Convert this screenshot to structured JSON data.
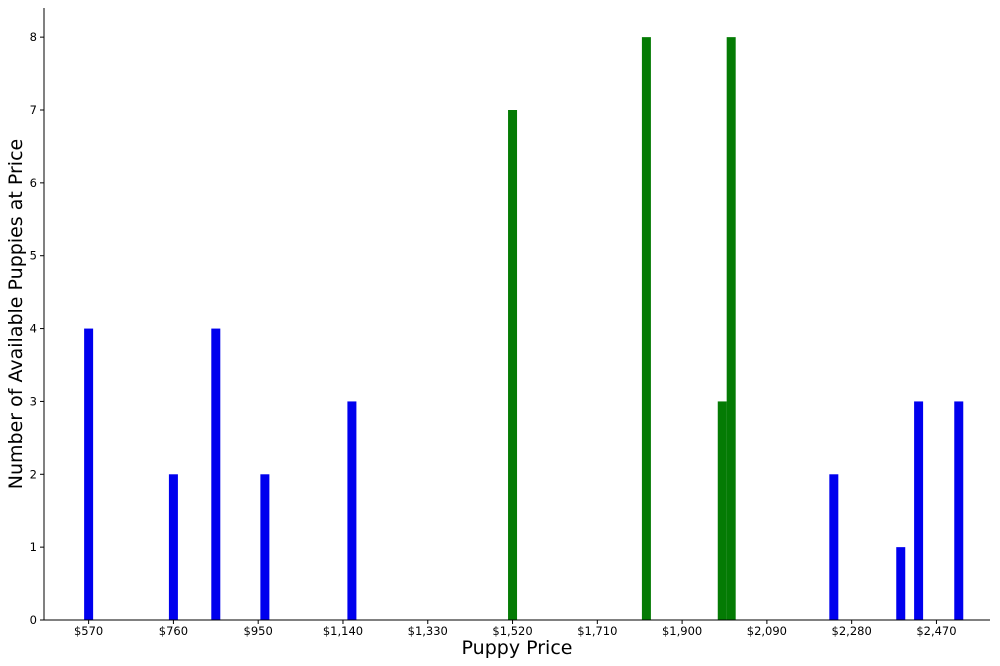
{
  "chart_data": {
    "type": "bar",
    "xlabel": "Puppy Price",
    "ylabel": "Number of Available Puppies at Price",
    "xlim": [
      470,
      2590
    ],
    "ylim": [
      0,
      8.4
    ],
    "x_ticks": [
      570,
      760,
      950,
      1140,
      1330,
      1520,
      1710,
      1900,
      2090,
      2280,
      2470
    ],
    "x_tick_labels": [
      "$570",
      "$760",
      "$950",
      "$1,140",
      "$1,330",
      "$1,520",
      "$1,710",
      "$1,900",
      "$2,090",
      "$2,280",
      "$2,470"
    ],
    "y_ticks": [
      0,
      1,
      2,
      3,
      4,
      5,
      6,
      7,
      8
    ],
    "y_tick_labels": [
      "0",
      "1",
      "2",
      "3",
      "4",
      "5",
      "6",
      "7",
      "8"
    ],
    "grid": false,
    "colors": {
      "blue": "#0000ee",
      "green": "#047b04"
    },
    "bars": [
      {
        "x": 570,
        "y": 4,
        "color": "blue"
      },
      {
        "x": 760,
        "y": 2,
        "color": "blue"
      },
      {
        "x": 855,
        "y": 4,
        "color": "blue"
      },
      {
        "x": 965,
        "y": 2,
        "color": "blue"
      },
      {
        "x": 1160,
        "y": 3,
        "color": "blue"
      },
      {
        "x": 1520,
        "y": 7,
        "color": "green"
      },
      {
        "x": 1820,
        "y": 8,
        "color": "green"
      },
      {
        "x": 1990,
        "y": 3,
        "color": "green"
      },
      {
        "x": 2010,
        "y": 8,
        "color": "green"
      },
      {
        "x": 2240,
        "y": 2,
        "color": "blue"
      },
      {
        "x": 2390,
        "y": 1,
        "color": "blue"
      },
      {
        "x": 2430,
        "y": 3,
        "color": "blue"
      },
      {
        "x": 2520,
        "y": 3,
        "color": "blue"
      }
    ]
  }
}
